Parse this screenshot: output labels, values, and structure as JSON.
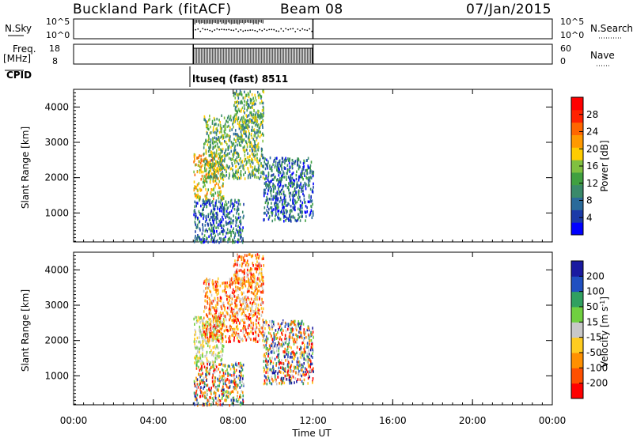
{
  "header": {
    "station": "Buckland Park (fitACF)",
    "beam": "Beam 08",
    "date": "07/Jan/2015",
    "cpid_label": "CPID",
    "cpid_value": "ltuseq (fast) 8511"
  },
  "strip_nsky": {
    "left_label": "N.Sky",
    "right_label": "N.Search",
    "ticks_left": [
      "10^5",
      "10^0"
    ],
    "ticks_right": [
      "10^5",
      "10^0"
    ]
  },
  "strip_freq": {
    "left_label_1": "Freq.",
    "left_label_2": "[MHz]",
    "right_label": "Nave",
    "ticks_left": [
      "18",
      "8"
    ],
    "ticks_right": [
      "60",
      "0"
    ]
  },
  "time_axis": {
    "label": "Time UT",
    "ticks": [
      "00:00",
      "04:00",
      "08:00",
      "12:00",
      "16:00",
      "20:00",
      "00:00"
    ]
  },
  "range_axis": {
    "label": "Slant Range [km]",
    "ticks": [
      "1000",
      "2000",
      "3000",
      "4000"
    ]
  },
  "power_colorbar": {
    "label": "Power [dB]",
    "ticks": [
      "4",
      "8",
      "12",
      "16",
      "20",
      "24",
      "28"
    ]
  },
  "velocity_colorbar": {
    "label_main": "Velocity [m s",
    "label_sup": "-1",
    "label_end": "]",
    "ticks": [
      "200",
      "100",
      "50",
      "15",
      "-15",
      "-50",
      "-100",
      "-200"
    ]
  },
  "colors": {
    "power_scale": [
      "#0000ff",
      "#1a3aa8",
      "#2a6a9a",
      "#3a8a6a",
      "#40a040",
      "#80c040",
      "#ffcc00",
      "#ff9900",
      "#ff6600",
      "#ff2200",
      "#ff0000"
    ],
    "velocity_scale": [
      "#1a1aa0",
      "#2050c0",
      "#30a060",
      "#70d040",
      "#c8c8c8",
      "#ffcc20",
      "#ff9000",
      "#ff5000",
      "#ff0000"
    ]
  },
  "chart_data": [
    {
      "type": "scatter",
      "panel": "N.Sky / N.Search",
      "x_range_hours": [
        0,
        24
      ],
      "data_window_hours": [
        6.0,
        12.0
      ],
      "nsky_log10": {
        "x": [
          6.0,
          6.5,
          7.0,
          7.5,
          8.0,
          8.5,
          9.0,
          9.5
        ],
        "y": [
          5.2,
          5.1,
          5.2,
          5.1,
          5.2,
          5.1,
          5.2,
          5.1
        ]
      },
      "nsearch_log10": {
        "x": [
          6.0,
          7.0,
          8.0,
          9.0,
          10.0,
          11.0,
          12.0
        ],
        "y": [
          3.0,
          3.1,
          2.9,
          3.0,
          2.8,
          3.2,
          3.3
        ]
      }
    },
    {
      "type": "line",
      "panel": "Freq. / Nave",
      "x_range_hours": [
        0,
        24
      ],
      "freq_mhz": {
        "x": [
          6.0,
          12.0
        ],
        "y": [
          17.5,
          17.5
        ]
      },
      "nave_range": [
        0,
        60
      ],
      "freq_range": [
        8,
        18
      ]
    },
    {
      "type": "heatmap",
      "panel": "Power",
      "x_range_hours": [
        0,
        24
      ],
      "y_range_km": [
        180,
        4500
      ],
      "color_range_db": [
        0,
        32
      ],
      "clusters": [
        {
          "t": [
            6.0,
            7.5
          ],
          "r": [
            1400,
            2700
          ],
          "level": "high"
        },
        {
          "t": [
            6.5,
            9.5
          ],
          "r": [
            2000,
            3800
          ],
          "level": "mid"
        },
        {
          "t": [
            6.0,
            8.5
          ],
          "r": [
            200,
            1400
          ],
          "level": "low"
        },
        {
          "t": [
            8.0,
            9.5
          ],
          "r": [
            3600,
            4500
          ],
          "level": "mid"
        },
        {
          "t": [
            9.5,
            12.0
          ],
          "r": [
            800,
            2600
          ],
          "level": "low"
        }
      ]
    },
    {
      "type": "heatmap",
      "panel": "Velocity",
      "x_range_hours": [
        0,
        24
      ],
      "y_range_km": [
        180,
        4500
      ],
      "color_range_ms": [
        -250,
        250
      ],
      "clusters": [
        {
          "t": [
            6.0,
            7.5
          ],
          "r": [
            1400,
            2700
          ],
          "level": "ground"
        },
        {
          "t": [
            6.5,
            9.5
          ],
          "r": [
            2000,
            3800
          ],
          "level": "neg"
        },
        {
          "t": [
            6.0,
            8.5
          ],
          "r": [
            200,
            1400
          ],
          "level": "mixed"
        },
        {
          "t": [
            8.0,
            9.5
          ],
          "r": [
            3600,
            4500
          ],
          "level": "neg"
        },
        {
          "t": [
            9.5,
            12.0
          ],
          "r": [
            800,
            2600
          ],
          "level": "mixed"
        }
      ]
    }
  ]
}
